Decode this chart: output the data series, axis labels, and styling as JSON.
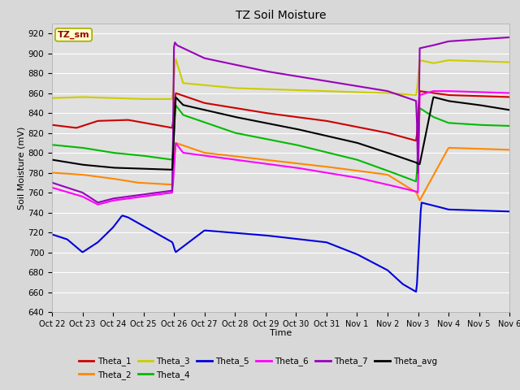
{
  "title": "TZ Soil Moisture",
  "xlabel": "Time",
  "ylabel": "Soil Moisture (mV)",
  "ylim": [
    640,
    930
  ],
  "yticks": [
    640,
    660,
    680,
    700,
    720,
    740,
    760,
    780,
    800,
    820,
    840,
    860,
    880,
    900,
    920
  ],
  "fig_bg": "#d8d8d8",
  "plot_bg": "#e0e0e0",
  "legend_label": "TZ_sm",
  "series_colors": {
    "Theta_1": "#cc0000",
    "Theta_2": "#ff8800",
    "Theta_3": "#cccc00",
    "Theta_4": "#00bb00",
    "Theta_5": "#0000dd",
    "Theta_6": "#ff00ff",
    "Theta_7": "#9900bb",
    "Theta_avg": "#000000"
  },
  "x_tick_labels": [
    "Oct 22",
    "Oct 23",
    "Oct 24",
    "Oct 25",
    "Oct 26",
    "Oct 27",
    "Oct 28",
    "Oct 29",
    "Oct 30",
    "Oct 31",
    "Nov 1",
    "Nov 2",
    "Nov 3",
    "Nov 4",
    "Nov 5",
    "Nov 6"
  ],
  "keypoints": {
    "Theta_1": {
      "kx": [
        0,
        0.8,
        1.5,
        2.5,
        3.95,
        4.05,
        5,
        7,
        9,
        11,
        11.95,
        12.05,
        12.5,
        13,
        14,
        15
      ],
      "ky": [
        828,
        825,
        832,
        833,
        825,
        860,
        850,
        840,
        832,
        820,
        812,
        862,
        860,
        858,
        857,
        856
      ]
    },
    "Theta_2": {
      "kx": [
        0,
        1,
        2,
        2.8,
        3.95,
        4.05,
        5,
        7,
        9,
        11,
        11.95,
        12.05,
        13,
        14,
        15
      ],
      "ky": [
        780,
        778,
        774,
        770,
        768,
        810,
        800,
        793,
        786,
        778,
        760,
        752,
        805,
        804,
        803
      ]
    },
    "Theta_3": {
      "kx": [
        0,
        1,
        2,
        3,
        3.95,
        4.05,
        4.3,
        6,
        9,
        11,
        11.95,
        12.05,
        12.5,
        13,
        14,
        15
      ],
      "ky": [
        855,
        856,
        855,
        854,
        854,
        895,
        870,
        865,
        862,
        860,
        858,
        893,
        890,
        893,
        892,
        891
      ]
    },
    "Theta_4": {
      "kx": [
        0,
        1,
        2,
        3,
        3.95,
        4.05,
        4.3,
        6,
        8,
        10,
        11,
        11.95,
        12.05,
        12.5,
        13,
        14,
        15
      ],
      "ky": [
        808,
        805,
        800,
        797,
        793,
        848,
        838,
        820,
        808,
        793,
        782,
        771,
        845,
        836,
        830,
        828,
        827
      ]
    },
    "Theta_5": {
      "kx": [
        0,
        0.5,
        1.0,
        1.5,
        2.0,
        2.3,
        2.5,
        3.95,
        4.05,
        5,
        7,
        9,
        10,
        11,
        11.5,
        11.9,
        11.95,
        12.1,
        12.5,
        13,
        14,
        15
      ],
      "ky": [
        718,
        713,
        700,
        710,
        725,
        737,
        735,
        710,
        700,
        722,
        717,
        710,
        698,
        682,
        668,
        661,
        660,
        750,
        747,
        743,
        742,
        741
      ]
    },
    "Theta_6": {
      "kx": [
        0,
        1,
        1.5,
        2,
        3.95,
        4.05,
        4.3,
        6,
        8,
        10,
        11,
        11.95,
        12.0,
        12.05,
        12.5,
        13,
        14,
        15
      ],
      "ky": [
        765,
        756,
        748,
        752,
        760,
        810,
        800,
        793,
        785,
        775,
        768,
        761,
        760,
        858,
        862,
        862,
        861,
        860
      ]
    },
    "Theta_7": {
      "kx": [
        0,
        1,
        1.5,
        2,
        3.95,
        4.0,
        4.1,
        5,
        7,
        9,
        11,
        11.95,
        12.0,
        12.05,
        12.5,
        13,
        14,
        15
      ],
      "ky": [
        770,
        760,
        750,
        754,
        762,
        912,
        908,
        895,
        882,
        872,
        862,
        852,
        770,
        905,
        908,
        912,
        914,
        916
      ]
    },
    "Theta_avg": {
      "kx": [
        0,
        1,
        2,
        3,
        3.95,
        4.05,
        4.3,
        6,
        8,
        10,
        11,
        11.95,
        12.05,
        12.5,
        13,
        14,
        15
      ],
      "ky": [
        793,
        788,
        785,
        784,
        783,
        856,
        848,
        836,
        824,
        810,
        800,
        790,
        788,
        856,
        852,
        848,
        843
      ]
    }
  }
}
